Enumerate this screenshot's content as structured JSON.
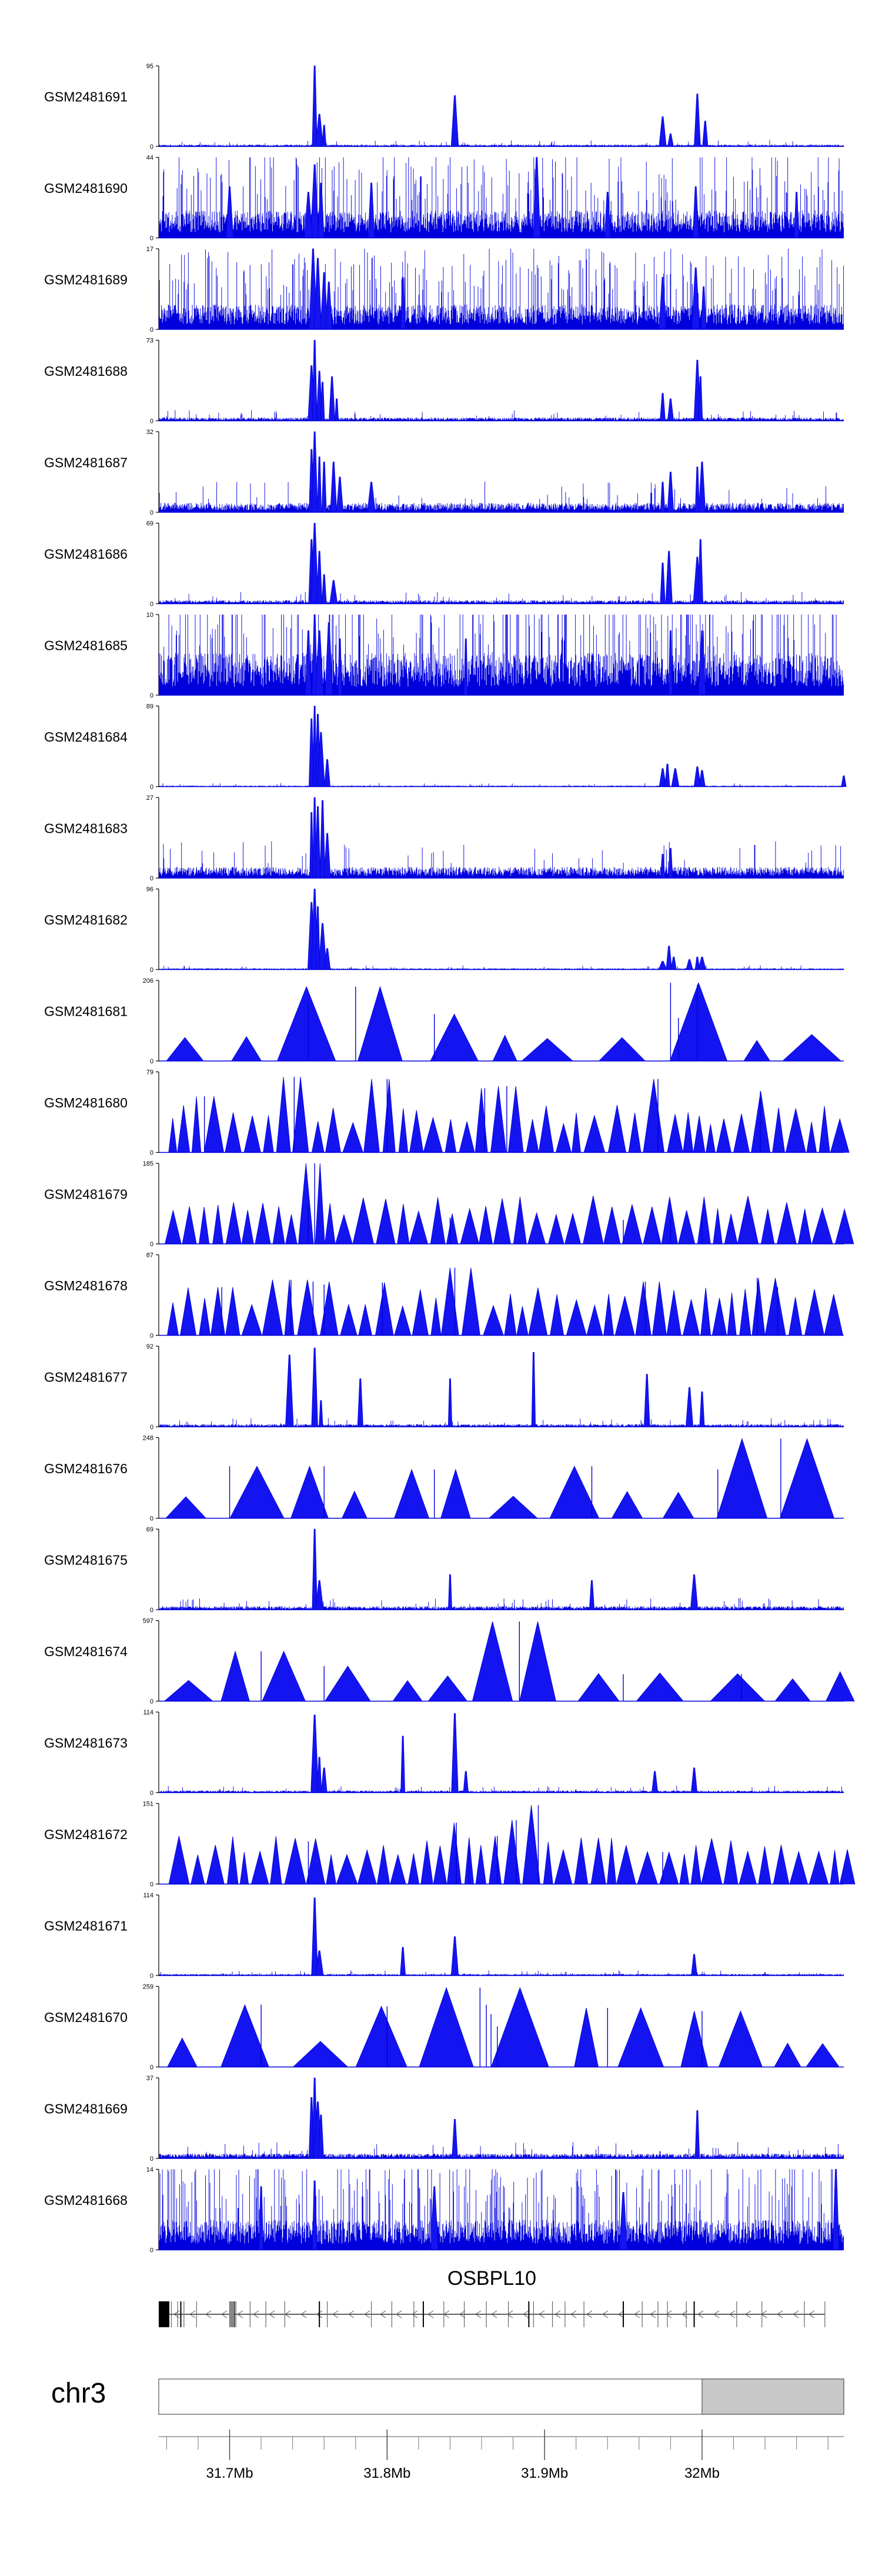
{
  "colors": {
    "signal": "#0000dd",
    "signal_fill": "#1414f0",
    "axis": "#000000",
    "ideogram_fill": "#c8c8c8",
    "ideogram_border": "#555555"
  },
  "chart_data": {
    "type": "area",
    "title": "",
    "region": {
      "chrom": "chr3",
      "start_mb": 31.655,
      "end_mb": 32.09
    },
    "tracks": [
      {
        "name": "GSM2481691",
        "ymax": 95,
        "style": "spiky",
        "background": 1.5,
        "peaks": [
          [
            31.754,
            95
          ],
          [
            31.757,
            38
          ],
          [
            31.76,
            25
          ],
          [
            31.843,
            60
          ],
          [
            31.975,
            35
          ],
          [
            31.98,
            15
          ],
          [
            31.997,
            62
          ],
          [
            32.002,
            30
          ]
        ]
      },
      {
        "name": "GSM2481690",
        "ymax": 44,
        "style": "noisy",
        "background": 10,
        "peaks": [
          [
            31.754,
            40
          ],
          [
            31.758,
            30
          ],
          [
            31.75,
            25
          ],
          [
            31.7,
            28
          ],
          [
            31.79,
            30
          ],
          [
            31.895,
            44
          ],
          [
            31.94,
            25
          ],
          [
            31.996,
            28
          ],
          [
            32.06,
            25
          ]
        ]
      },
      {
        "name": "GSM2481689",
        "ymax": 17,
        "style": "noisy",
        "background": 3.5,
        "peaks": [
          [
            31.753,
            17
          ],
          [
            31.756,
            15
          ],
          [
            31.76,
            12
          ],
          [
            31.763,
            10
          ],
          [
            31.81,
            11
          ],
          [
            31.975,
            11
          ],
          [
            31.996,
            13
          ],
          [
            32.001,
            9
          ]
        ]
      },
      {
        "name": "GSM2481688",
        "ymax": 73,
        "style": "spiky",
        "background": 2,
        "peaks": [
          [
            31.752,
            50
          ],
          [
            31.754,
            73
          ],
          [
            31.757,
            45
          ],
          [
            31.759,
            35
          ],
          [
            31.765,
            40
          ],
          [
            31.768,
            20
          ],
          [
            31.975,
            25
          ],
          [
            31.98,
            20
          ],
          [
            31.997,
            55
          ],
          [
            31.999,
            40
          ]
        ]
      },
      {
        "name": "GSM2481687",
        "ymax": 32,
        "style": "spiky",
        "background": 2.5,
        "peaks": [
          [
            31.752,
            25
          ],
          [
            31.754,
            32
          ],
          [
            31.757,
            22
          ],
          [
            31.76,
            20
          ],
          [
            31.766,
            20
          ],
          [
            31.77,
            14
          ],
          [
            31.79,
            12
          ],
          [
            31.975,
            12
          ],
          [
            31.98,
            16
          ],
          [
            31.997,
            18
          ],
          [
            32.0,
            20
          ]
        ]
      },
      {
        "name": "GSM2481686",
        "ymax": 69,
        "style": "spiky",
        "background": 2,
        "peaks": [
          [
            31.752,
            55
          ],
          [
            31.754,
            69
          ],
          [
            31.757,
            45
          ],
          [
            31.76,
            25
          ],
          [
            31.766,
            20
          ],
          [
            31.975,
            35
          ],
          [
            31.979,
            45
          ],
          [
            31.997,
            40
          ],
          [
            31.999,
            55
          ]
        ]
      },
      {
        "name": "GSM2481685",
        "ymax": 10,
        "style": "noisy",
        "background": 3.5,
        "peaks": [
          [
            31.75,
            8
          ],
          [
            31.754,
            10
          ],
          [
            31.757,
            8
          ],
          [
            31.763,
            9
          ],
          [
            31.77,
            7
          ],
          [
            31.85,
            7
          ],
          [
            31.98,
            8
          ],
          [
            32.0,
            8
          ]
        ]
      },
      {
        "name": "GSM2481684",
        "ymax": 89,
        "style": "spiky",
        "background": 0.8,
        "peaks": [
          [
            31.752,
            75
          ],
          [
            31.754,
            89
          ],
          [
            31.756,
            80
          ],
          [
            31.758,
            60
          ],
          [
            31.762,
            30
          ],
          [
            31.975,
            20
          ],
          [
            31.978,
            25
          ],
          [
            31.983,
            20
          ],
          [
            31.997,
            22
          ],
          [
            32.0,
            18
          ],
          [
            32.09,
            12
          ]
        ]
      },
      {
        "name": "GSM2481683",
        "ymax": 27,
        "style": "spiky",
        "background": 2.5,
        "peaks": [
          [
            31.752,
            22
          ],
          [
            31.754,
            27
          ],
          [
            31.756,
            24
          ],
          [
            31.759,
            26
          ],
          [
            31.762,
            15
          ],
          [
            31.975,
            8
          ],
          [
            31.98,
            10
          ]
        ]
      },
      {
        "name": "GSM2481682",
        "ymax": 96,
        "style": "spiky",
        "background": 1,
        "peaks": [
          [
            31.752,
            80
          ],
          [
            31.754,
            96
          ],
          [
            31.756,
            75
          ],
          [
            31.759,
            55
          ],
          [
            31.762,
            25
          ],
          [
            31.975,
            10
          ],
          [
            31.979,
            28
          ],
          [
            31.982,
            15
          ],
          [
            31.992,
            12
          ],
          [
            31.997,
            15
          ],
          [
            32.0,
            15
          ]
        ]
      },
      {
        "name": "GSM2481681",
        "ymax": 206,
        "style": "triangles",
        "dense": false,
        "background": 0,
        "peaks": [
          [
            31.78,
            190
          ],
          [
            31.75,
            150
          ],
          [
            31.83,
            120
          ],
          [
            31.98,
            200
          ],
          [
            31.997,
            195
          ],
          [
            31.985,
            110
          ]
        ]
      },
      {
        "name": "GSM2481680",
        "ymax": 79,
        "style": "triangles",
        "dense": true,
        "background": 0,
        "peaks": [
          [
            31.684,
            55
          ],
          [
            31.741,
            74
          ],
          [
            31.8,
            72
          ],
          [
            31.862,
            63
          ],
          [
            31.876,
            65
          ],
          [
            31.972,
            72
          ],
          [
            32.037,
            60
          ]
        ]
      },
      {
        "name": "GSM2481679",
        "ymax": 185,
        "style": "triangles",
        "dense": true,
        "background": 0,
        "peaks": [
          [
            31.754,
            185
          ],
          [
            31.75,
            90
          ],
          [
            31.84,
            60
          ],
          [
            31.95,
            55
          ],
          [
            31.98,
            60
          ],
          [
            32.0,
            70
          ]
        ]
      },
      {
        "name": "GSM2481678",
        "ymax": 87,
        "style": "triangles",
        "dense": true,
        "background": 0,
        "peaks": [
          [
            31.695,
            52
          ],
          [
            31.739,
            60
          ],
          [
            31.753,
            58
          ],
          [
            31.76,
            55
          ],
          [
            31.797,
            57
          ],
          [
            31.843,
            73
          ],
          [
            31.964,
            58
          ],
          [
            32.035,
            62
          ],
          [
            32.048,
            52
          ]
        ]
      },
      {
        "name": "GSM2481677",
        "ymax": 92,
        "style": "spiky",
        "background": 2,
        "peaks": [
          [
            31.738,
            82
          ],
          [
            31.754,
            90
          ],
          [
            31.758,
            30
          ],
          [
            31.783,
            55
          ],
          [
            31.84,
            55
          ],
          [
            31.893,
            85
          ],
          [
            31.965,
            60
          ],
          [
            31.992,
            45
          ],
          [
            32.0,
            40
          ]
        ]
      },
      {
        "name": "GSM2481676",
        "ymax": 248,
        "style": "triangles",
        "dense": false,
        "background": 0,
        "peaks": [
          [
            32.05,
            245
          ],
          [
            31.7,
            160
          ],
          [
            31.76,
            160
          ],
          [
            31.83,
            150
          ],
          [
            31.93,
            160
          ],
          [
            32.01,
            150
          ]
        ]
      },
      {
        "name": "GSM2481675",
        "ymax": 69,
        "style": "spiky",
        "background": 2,
        "peaks": [
          [
            31.754,
            69
          ],
          [
            31.757,
            25
          ],
          [
            31.84,
            30
          ],
          [
            31.93,
            25
          ],
          [
            31.995,
            30
          ]
        ]
      },
      {
        "name": "GSM2481674",
        "ymax": 597,
        "style": "triangles",
        "dense": false,
        "background": 0,
        "peaks": [
          [
            31.884,
            590
          ],
          [
            31.72,
            370
          ],
          [
            31.76,
            260
          ],
          [
            31.95,
            200
          ],
          [
            32.025,
            200
          ]
        ]
      },
      {
        "name": "GSM2481673",
        "ymax": 114,
        "style": "spiky",
        "background": 2,
        "peaks": [
          [
            31.754,
            110
          ],
          [
            31.757,
            50
          ],
          [
            31.76,
            35
          ],
          [
            31.81,
            80
          ],
          [
            31.843,
            112
          ],
          [
            31.85,
            30
          ],
          [
            31.97,
            30
          ],
          [
            31.995,
            35
          ]
        ]
      },
      {
        "name": "GSM2481672",
        "ymax": 151,
        "style": "triangles",
        "dense": true,
        "background": 0,
        "peaks": [
          [
            31.844,
            115
          ],
          [
            31.852,
            70
          ],
          [
            31.87,
            90
          ],
          [
            31.882,
            120
          ],
          [
            31.896,
            148
          ],
          [
            31.75,
            80
          ],
          [
            31.975,
            60
          ]
        ]
      },
      {
        "name": "GSM2481671",
        "ymax": 114,
        "style": "spiky",
        "background": 1.5,
        "peaks": [
          [
            31.754,
            110
          ],
          [
            31.757,
            35
          ],
          [
            31.81,
            40
          ],
          [
            31.843,
            55
          ],
          [
            31.995,
            30
          ]
        ]
      },
      {
        "name": "GSM2481670",
        "ymax": 259,
        "style": "triangles",
        "dense": false,
        "background": 0,
        "peaks": [
          [
            31.859,
            255
          ],
          [
            31.863,
            200
          ],
          [
            31.866,
            170
          ],
          [
            31.87,
            130
          ],
          [
            31.72,
            200
          ],
          [
            31.8,
            195
          ],
          [
            31.94,
            190
          ],
          [
            32.0,
            180
          ]
        ]
      },
      {
        "name": "GSM2481669",
        "ymax": 37,
        "style": "spiky",
        "background": 1.5,
        "peaks": [
          [
            31.752,
            28
          ],
          [
            31.754,
            37
          ],
          [
            31.756,
            26
          ],
          [
            31.758,
            20
          ],
          [
            31.843,
            18
          ],
          [
            31.997,
            22
          ]
        ]
      },
      {
        "name": "GSM2481668",
        "ymax": 14,
        "style": "noisy",
        "background": 3.5,
        "peaks": [
          [
            31.72,
            11
          ],
          [
            31.754,
            12
          ],
          [
            31.83,
            11
          ],
          [
            31.95,
            10
          ],
          [
            32.085,
            14
          ]
        ]
      }
    ],
    "gene": {
      "name": "OSBPL10",
      "strand": "-",
      "start_mb": 31.655,
      "end_mb": 32.078,
      "exons_mb": [
        31.657,
        31.658,
        31.659,
        31.663,
        31.667,
        31.669,
        31.671,
        31.679,
        31.7,
        31.702,
        31.703,
        31.704,
        31.713,
        31.723,
        31.735,
        31.757,
        31.762,
        31.79,
        31.803,
        31.817,
        31.823,
        31.836,
        31.849,
        31.863,
        31.877,
        31.89,
        31.893,
        31.905,
        31.913,
        31.925,
        31.95,
        31.962,
        31.972,
        31.978,
        31.99,
        31.995,
        32.022,
        32.038,
        32.065,
        32.078
      ]
    },
    "ideogram": {
      "chrom": "chr3",
      "grey_start_mb": 32.0,
      "axis": {
        "labeled_ticks": [
          {
            "mb": 31.7,
            "label": "31.7Mb"
          },
          {
            "mb": 31.8,
            "label": "31.8Mb"
          },
          {
            "mb": 31.9,
            "label": "31.9Mb"
          },
          {
            "mb": 32.0,
            "label": "32Mb"
          }
        ],
        "minor_step_mb": 0.02
      }
    }
  }
}
